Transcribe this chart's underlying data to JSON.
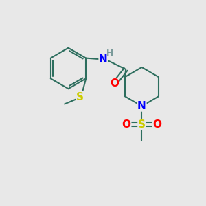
{
  "background_color": "#e8e8e8",
  "bond_color": "#2d6e5e",
  "bond_width": 1.5,
  "atom_colors": {
    "N": "#0000ff",
    "O": "#ff0000",
    "S_thio": "#cccc00",
    "S_sulfonyl": "#cccc00",
    "H": "#7a9a9a",
    "C": "#2d6e5e"
  },
  "font_size_atoms": 10,
  "fig_width": 3.0,
  "fig_height": 3.0,
  "dpi": 100
}
